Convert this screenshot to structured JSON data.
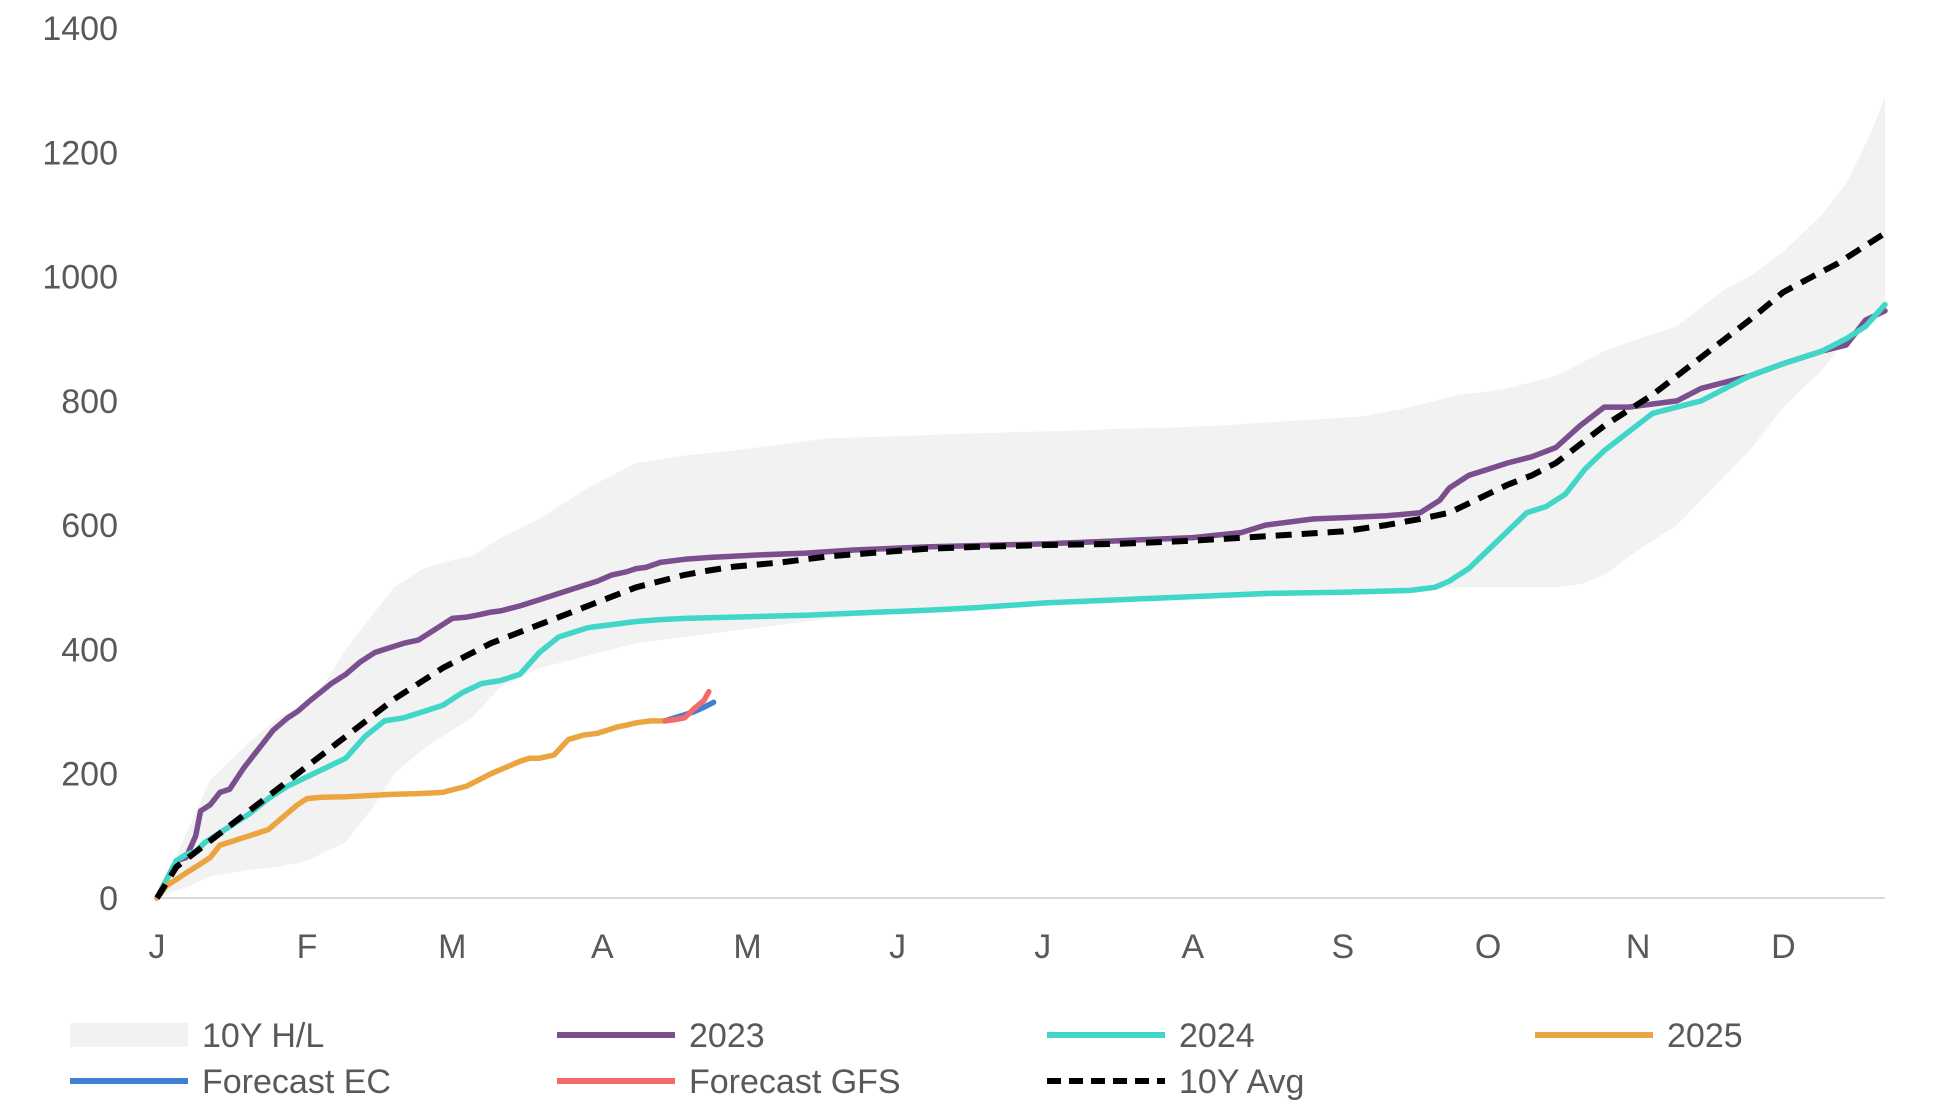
{
  "chart_data": {
    "type": "line",
    "title": "",
    "xlabel": "",
    "ylabel": "",
    "ylim": [
      0,
      1400
    ],
    "yticks": [
      0,
      200,
      400,
      600,
      800,
      1000,
      1200,
      1400
    ],
    "xlim": [
      1,
      358
    ],
    "x_ticks": [
      {
        "day": 1,
        "label": "J"
      },
      {
        "day": 32,
        "label": "F"
      },
      {
        "day": 62,
        "label": "M"
      },
      {
        "day": 93,
        "label": "A"
      },
      {
        "day": 123,
        "label": "M"
      },
      {
        "day": 154,
        "label": "J"
      },
      {
        "day": 184,
        "label": "J"
      },
      {
        "day": 215,
        "label": "A"
      },
      {
        "day": 246,
        "label": "S"
      },
      {
        "day": 276,
        "label": "O"
      },
      {
        "day": 307,
        "label": "N"
      },
      {
        "day": 337,
        "label": "D"
      }
    ],
    "grid": false,
    "legend_position": "bottom",
    "band": {
      "name": "10Y H/L",
      "color": "#f2f2f2",
      "x": [
        1,
        8,
        12,
        16,
        20,
        26,
        32,
        36,
        40,
        46,
        50,
        56,
        60,
        66,
        72,
        80,
        90,
        100,
        110,
        120,
        130,
        140,
        150,
        160,
        170,
        180,
        190,
        200,
        210,
        220,
        230,
        240,
        250,
        260,
        270,
        276,
        280,
        285,
        290,
        295,
        300,
        307,
        315,
        320,
        325,
        330,
        337,
        345,
        350,
        355,
        358
      ],
      "high": [
        0,
        120,
        190,
        220,
        250,
        290,
        310,
        350,
        400,
        460,
        500,
        530,
        540,
        550,
        580,
        610,
        660,
        700,
        712,
        720,
        730,
        740,
        742,
        745,
        748,
        750,
        752,
        755,
        757,
        760,
        765,
        770,
        775,
        790,
        810,
        815,
        820,
        830,
        840,
        860,
        880,
        900,
        920,
        950,
        980,
        1000,
        1040,
        1100,
        1150,
        1230,
        1290
      ],
      "low": [
        0,
        20,
        35,
        40,
        45,
        50,
        60,
        75,
        90,
        150,
        200,
        240,
        260,
        290,
        340,
        370,
        390,
        410,
        420,
        430,
        440,
        450,
        455,
        460,
        465,
        470,
        475,
        478,
        480,
        482,
        485,
        488,
        490,
        495,
        500,
        500,
        500,
        500,
        500,
        505,
        520,
        560,
        600,
        640,
        680,
        720,
        790,
        850,
        900,
        930,
        940
      ]
    },
    "series": [
      {
        "name": "2023",
        "color": "#7b4f8e",
        "dashed": false,
        "x": [
          1,
          3,
          5,
          7,
          9,
          10,
          12,
          14,
          16,
          19,
          22,
          25,
          28,
          30,
          33,
          37,
          40,
          43,
          46,
          48,
          52,
          55,
          58,
          62,
          65,
          67,
          70,
          72,
          76,
          80,
          84,
          88,
          92,
          95,
          98,
          100,
          102,
          105,
          110,
          115,
          120,
          125,
          135,
          145,
          160,
          170,
          185,
          200,
          215,
          225,
          230,
          240,
          246,
          255,
          262,
          266,
          268,
          272,
          276,
          280,
          285,
          290,
          295,
          300,
          305,
          310,
          315,
          320,
          325,
          330,
          337,
          345,
          350,
          354,
          358
        ],
        "y": [
          0,
          30,
          60,
          65,
          100,
          140,
          150,
          170,
          175,
          210,
          240,
          270,
          290,
          300,
          320,
          345,
          360,
          380,
          395,
          400,
          410,
          415,
          430,
          450,
          452,
          455,
          460,
          462,
          470,
          480,
          490,
          500,
          510,
          520,
          525,
          530,
          532,
          540,
          545,
          548,
          550,
          552,
          555,
          560,
          565,
          567,
          570,
          575,
          580,
          588,
          600,
          610,
          612,
          615,
          620,
          640,
          660,
          680,
          690,
          700,
          710,
          725,
          760,
          790,
          790,
          795,
          800,
          820,
          830,
          840,
          860,
          880,
          890,
          930,
          945
        ]
      },
      {
        "name": "2024",
        "color": "#40d6c8",
        "dashed": false,
        "x": [
          1,
          3,
          5,
          7,
          9,
          11,
          14,
          17,
          20,
          24,
          28,
          32,
          36,
          40,
          44,
          48,
          52,
          56,
          60,
          64,
          68,
          72,
          76,
          80,
          84,
          86,
          88,
          90,
          92,
          95,
          100,
          105,
          110,
          120,
          135,
          150,
          160,
          170,
          185,
          200,
          215,
          230,
          246,
          260,
          265,
          268,
          272,
          276,
          280,
          284,
          288,
          292,
          296,
          300,
          305,
          310,
          315,
          320,
          325,
          330,
          337,
          345,
          350,
          354,
          358
        ],
        "y": [
          0,
          30,
          60,
          70,
          75,
          90,
          105,
          120,
          135,
          160,
          180,
          195,
          210,
          225,
          260,
          285,
          290,
          300,
          310,
          330,
          345,
          350,
          360,
          395,
          420,
          425,
          430,
          435,
          437,
          440,
          445,
          448,
          450,
          452,
          455,
          460,
          463,
          467,
          475,
          480,
          485,
          490,
          492,
          495,
          500,
          510,
          530,
          560,
          590,
          620,
          630,
          650,
          690,
          720,
          750,
          780,
          790,
          800,
          820,
          840,
          860,
          880,
          900,
          920,
          955
        ]
      },
      {
        "name": "2025",
        "color": "#eca53e",
        "dashed": false,
        "x": [
          1,
          3,
          5,
          7,
          10,
          12,
          14,
          16,
          20,
          24,
          27,
          30,
          32,
          35,
          40,
          45,
          50,
          55,
          60,
          65,
          70,
          73,
          76,
          78,
          80,
          83,
          86,
          89,
          92,
          94,
          96,
          98,
          100,
          103,
          106,
          108
        ],
        "y": [
          0,
          20,
          30,
          40,
          55,
          65,
          85,
          90,
          100,
          110,
          130,
          150,
          160,
          162,
          163,
          165,
          167,
          168,
          170,
          180,
          200,
          210,
          220,
          225,
          225,
          230,
          255,
          262,
          265,
          270,
          275,
          278,
          282,
          285,
          285,
          290
        ]
      },
      {
        "name": "Forecast EC",
        "color": "#3f7fd4",
        "dashed": false,
        "x": [
          106,
          108,
          110,
          112,
          114,
          116
        ],
        "y": [
          285,
          290,
          295,
          300,
          307,
          315
        ]
      },
      {
        "name": "Forecast GFS",
        "color": "#f26b6b",
        "dashed": false,
        "x": [
          106,
          108,
          110,
          112,
          114,
          115
        ],
        "y": [
          285,
          287,
          290,
          305,
          318,
          332
        ]
      },
      {
        "name": "10Y Avg",
        "color": "#000000",
        "dashed": true,
        "x": [
          1,
          5,
          10,
          15,
          20,
          25,
          30,
          35,
          40,
          45,
          50,
          55,
          60,
          65,
          70,
          75,
          80,
          85,
          90,
          95,
          100,
          105,
          110,
          115,
          120,
          130,
          140,
          150,
          160,
          170,
          185,
          200,
          215,
          230,
          246,
          255,
          262,
          268,
          272,
          276,
          280,
          285,
          290,
          295,
          300,
          305,
          310,
          315,
          320,
          325,
          330,
          337,
          343,
          348,
          353,
          358
        ],
        "y": [
          0,
          50,
          80,
          110,
          140,
          170,
          200,
          230,
          260,
          290,
          320,
          345,
          370,
          390,
          410,
          425,
          440,
          455,
          470,
          485,
          500,
          510,
          520,
          527,
          533,
          540,
          550,
          556,
          562,
          565,
          568,
          570,
          575,
          582,
          590,
          600,
          610,
          620,
          635,
          650,
          665,
          680,
          700,
          730,
          760,
          785,
          810,
          840,
          870,
          900,
          930,
          975,
          1000,
          1020,
          1045,
          1070
        ]
      }
    ],
    "legend": [
      {
        "label": "10Y H/L",
        "kind": "band",
        "color": "#f2f2f2"
      },
      {
        "label": "2023",
        "kind": "line",
        "color": "#7b4f8e"
      },
      {
        "label": "2024",
        "kind": "line",
        "color": "#40d6c8"
      },
      {
        "label": "2025",
        "kind": "line",
        "color": "#eca53e"
      },
      {
        "label": "Forecast EC",
        "kind": "line",
        "color": "#3f7fd4"
      },
      {
        "label": "Forecast GFS",
        "kind": "line",
        "color": "#f26b6b"
      },
      {
        "label": "10Y Avg",
        "kind": "dashed",
        "color": "#000000"
      }
    ]
  }
}
